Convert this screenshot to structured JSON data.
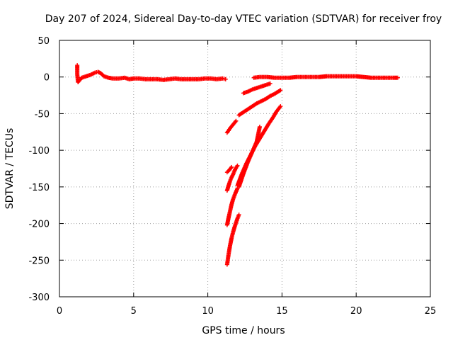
{
  "chart_data": {
    "type": "scatter",
    "title": "Day 207 of 2024, Sidereal Day-to-day VTEC variation (SDTVAR) for receiver froy",
    "xlabel": "GPS time / hours",
    "ylabel": "SDTVAR / TECUs",
    "xlim": [
      0,
      25
    ],
    "ylim": [
      -300,
      50
    ],
    "x_ticks": [
      0,
      5,
      10,
      15,
      20,
      25
    ],
    "y_ticks": [
      -300,
      -250,
      -200,
      -150,
      -100,
      -50,
      0,
      50
    ],
    "grid": true,
    "marker": "+",
    "color": "#ff0000",
    "series": [
      {
        "x": [
          1.2,
          1.2,
          1.25,
          1.5,
          1.8,
          2.1,
          2.4,
          2.6,
          2.8,
          3.0,
          3.3,
          3.6,
          4.0,
          4.4,
          4.7,
          5.0,
          5.4,
          5.8,
          6.2,
          6.6,
          7.0,
          7.4,
          7.8,
          8.2,
          8.6,
          9.0,
          9.4,
          9.8,
          10.2,
          10.6,
          11.0,
          11.2
        ],
        "y": [
          16,
          4,
          -7,
          -1,
          1,
          3,
          6,
          7,
          5,
          1,
          -1,
          -2,
          -2,
          -1,
          -3,
          -2,
          -2,
          -3,
          -3,
          -3,
          -4,
          -3,
          -2,
          -3,
          -3,
          -3,
          -3,
          -2,
          -2,
          -3,
          -2,
          -3
        ]
      },
      {
        "x": [
          13.1,
          13.5,
          14.0,
          14.5,
          15.0,
          15.5,
          16.0,
          16.5,
          17.0,
          17.5,
          18.0,
          18.5,
          19.0,
          19.5,
          20.0,
          20.5,
          21.0,
          21.5,
          22.0,
          22.5,
          22.8
        ],
        "y": [
          -1,
          0,
          0,
          -1,
          -1,
          -1,
          0,
          0,
          0,
          0,
          1,
          1,
          1,
          1,
          1,
          0,
          -1,
          -1,
          -1,
          -1,
          -1
        ]
      },
      {
        "x": [
          12.4,
          12.7,
          13.0,
          13.3,
          13.6,
          13.9,
          14.2
        ],
        "y": [
          -22,
          -20,
          -17,
          -15,
          -13,
          -11,
          -9
        ]
      },
      {
        "x": [
          11.3,
          11.5,
          11.7,
          11.9
        ],
        "y": [
          -76,
          -70,
          -65,
          -60
        ]
      },
      {
        "x": [
          12.1,
          12.4,
          12.7,
          13.0,
          13.3,
          13.6,
          13.9,
          14.2,
          14.5,
          14.9
        ],
        "y": [
          -52,
          -48,
          -44,
          -40,
          -36,
          -33,
          -30,
          -26,
          -23,
          -18
        ]
      },
      {
        "x": [
          11.3,
          11.45,
          11.6
        ],
        "y": [
          -130,
          -127,
          -123
        ]
      },
      {
        "x": [
          11.3,
          11.4,
          11.5,
          11.6,
          11.7,
          11.8,
          11.9,
          12.0
        ],
        "y": [
          -155,
          -148,
          -142,
          -137,
          -133,
          -128,
          -124,
          -121
        ]
      },
      {
        "x": [
          11.3,
          11.4,
          11.5,
          11.6,
          11.7,
          11.85,
          12.0
        ],
        "y": [
          -202,
          -192,
          -183,
          -174,
          -167,
          -159,
          -152
        ]
      },
      {
        "x": [
          12.0,
          12.3,
          12.6,
          12.9,
          13.2,
          13.5,
          13.8,
          14.1,
          14.4,
          14.6,
          14.9
        ],
        "y": [
          -148,
          -132,
          -118,
          -106,
          -94,
          -84,
          -74,
          -64,
          -55,
          -48,
          -40
        ]
      },
      {
        "x": [
          12.1,
          12.4,
          12.7,
          13.0,
          13.3,
          13.5
        ],
        "y": [
          -150,
          -132,
          -116,
          -102,
          -88,
          -68
        ]
      },
      {
        "x": [
          11.3,
          11.4,
          11.5,
          11.6,
          11.7,
          11.8,
          11.9,
          12.0,
          12.1
        ],
        "y": [
          -256,
          -242,
          -230,
          -220,
          -212,
          -205,
          -199,
          -193,
          -188
        ]
      }
    ]
  }
}
